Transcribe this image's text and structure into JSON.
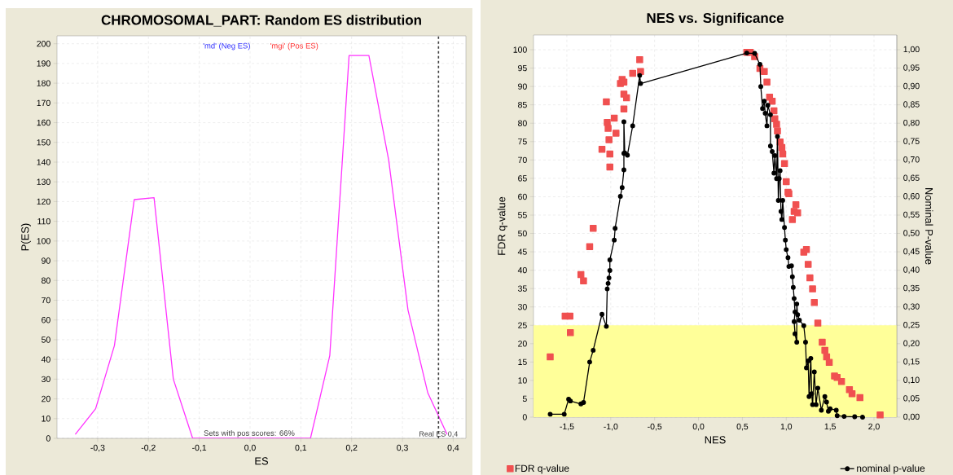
{
  "chart_data": [
    {
      "type": "line",
      "title": "CHROMOSOMAL_PART: Random ES distribution",
      "xlabel": "ES",
      "ylabel": "P(ES)",
      "x": [
        -0.344,
        -0.304,
        -0.267,
        -0.228,
        -0.189,
        -0.151,
        -0.113,
        0.119,
        0.157,
        0.195,
        0.234,
        0.273,
        0.311,
        0.35,
        0.388
      ],
      "series": [
        {
          "color": "#ff33ff",
          "values": [
            2,
            15,
            47,
            121,
            122,
            30,
            0,
            0,
            42,
            194,
            194,
            141,
            65,
            23,
            2
          ]
        }
      ],
      "xlim": [
        -0.38,
        0.425
      ],
      "ylim": [
        0,
        204
      ],
      "xticks": [
        {
          "value": -0.3,
          "label": "-0,3"
        },
        {
          "value": -0.2,
          "label": "-0,2"
        },
        {
          "value": -0.1,
          "label": "-0,1"
        },
        {
          "value": 0,
          "label": "0,0"
        },
        {
          "value": 0.1,
          "label": "0,1"
        },
        {
          "value": 0.2,
          "label": "0,2"
        },
        {
          "value": 0.3,
          "label": "0,3"
        },
        {
          "value": 0.4,
          "label": "0,4"
        }
      ],
      "yticks": [
        0,
        10,
        20,
        30,
        40,
        50,
        60,
        70,
        80,
        90,
        100,
        110,
        120,
        130,
        140,
        150,
        160,
        170,
        180,
        190,
        200
      ],
      "grid": true,
      "ref_lines": [
        {
          "axis": "x",
          "value": 0.371,
          "label": "Real ES 0,4",
          "color": "#404040",
          "line_style": "dashed"
        }
      ],
      "annotations": [
        "'md' (Neg ES)",
        "'mgi' (Pos ES)",
        "Sets with pos scores: 66%"
      ]
    },
    {
      "type": "scatter",
      "title": "NES vs. Significance",
      "xlabel": "NES",
      "ylabel": "FDR q-value",
      "y2label": "Nominal P-value",
      "series": [
        {
          "name": "FDR q-value",
          "type": "scatter",
          "color": "#f05050",
          "marker": "square",
          "x": [
            -1.69,
            -1.52,
            -1.465,
            -1.46,
            -1.34,
            -1.31,
            -1.24,
            -1.2,
            -1.1,
            -1.05,
            -1.04,
            -1.03,
            -1.02,
            -1.01,
            -1.01,
            -0.96,
            -0.94,
            -0.89,
            -0.87,
            -0.85,
            -0.85,
            -0.85,
            -0.82,
            -0.75,
            -0.67,
            -0.66,
            0.55,
            0.59,
            0.64,
            0.7,
            0.75,
            0.78,
            0.81,
            0.84,
            0.86,
            0.87,
            0.89,
            0.9,
            0.93,
            0.95,
            0.96,
            0.98,
            1.0,
            1.02,
            1.03,
            1.07,
            1.09,
            1.11,
            1.13,
            1.2,
            1.23,
            1.25,
            1.27,
            1.3,
            1.32,
            1.36,
            1.41,
            1.44,
            1.46,
            1.49,
            1.55,
            1.58,
            1.63,
            1.72,
            1.75,
            1.84,
            2.07
          ],
          "values": [
            16.4,
            27.5,
            27.5,
            23.0,
            38.8,
            37.1,
            46.4,
            51.4,
            72.9,
            85.8,
            80.2,
            78.6,
            75.5,
            71.6,
            68.1,
            81.4,
            77.3,
            90.8,
            91.9,
            91.2,
            87.9,
            83.9,
            86.9,
            93.6,
            97.3,
            94.1,
            99.3,
            99.3,
            98.1,
            94.9,
            94.1,
            91.2,
            87.1,
            86.0,
            83.4,
            81.2,
            79.7,
            77.9,
            74.9,
            73.4,
            71.6,
            69.0,
            64.1,
            61.2,
            60.8,
            53.8,
            56.0,
            57.8,
            55.6,
            44.9,
            45.6,
            41.6,
            37.9,
            34.9,
            31.2,
            25.6,
            20.4,
            18.2,
            16.4,
            14.9,
            11.2,
            10.8,
            9.7,
            7.5,
            6.4,
            5.3,
            0.6
          ]
        },
        {
          "name": "nominal p-value",
          "type": "line",
          "axis": "y2",
          "color": "#000000",
          "marker": "circle",
          "x": [
            -1.69,
            -1.53,
            -1.48,
            -1.46,
            -1.34,
            -1.31,
            -1.24,
            -1.2,
            -1.1,
            -1.05,
            -1.04,
            -1.03,
            -1.02,
            -1.01,
            -1.01,
            -0.96,
            -0.95,
            -0.89,
            -0.87,
            -0.85,
            -0.85,
            -0.85,
            -0.84,
            -0.81,
            -0.75,
            -0.67,
            -0.66,
            0.55,
            0.64,
            0.7,
            0.71,
            0.73,
            0.75,
            0.76,
            0.78,
            0.79,
            0.82,
            0.82,
            0.84,
            0.86,
            0.87,
            0.89,
            0.9,
            0.91,
            0.92,
            0.93,
            0.94,
            0.95,
            0.96,
            0.98,
            0.99,
            1.0,
            1.02,
            1.03,
            1.06,
            1.07,
            1.08,
            1.09,
            1.1,
            1.09,
            1.1,
            1.12,
            1.12,
            1.13,
            1.15,
            1.2,
            1.22,
            1.23,
            1.25,
            1.26,
            1.28,
            1.29,
            1.3,
            1.32,
            1.34,
            1.36,
            1.4,
            1.44,
            1.46,
            1.48,
            1.5,
            1.57,
            1.58,
            1.66,
            1.78,
            1.87
          ],
          "values": [
            0.008,
            0.008,
            0.049,
            0.044,
            0.036,
            0.04,
            0.15,
            0.182,
            0.28,
            0.247,
            0.349,
            0.364,
            0.379,
            0.399,
            0.428,
            0.482,
            0.514,
            0.601,
            0.625,
            0.673,
            0.718,
            0.804,
            0.719,
            0.713,
            0.793,
            0.93,
            0.908,
            0.991,
            0.99,
            0.96,
            0.9,
            0.84,
            0.86,
            0.827,
            0.793,
            0.849,
            0.823,
            0.738,
            0.723,
            0.664,
            0.712,
            0.649,
            0.764,
            0.59,
            0.649,
            0.671,
            0.56,
            0.538,
            0.59,
            0.516,
            0.482,
            0.456,
            0.434,
            0.41,
            0.412,
            0.382,
            0.353,
            0.323,
            0.286,
            0.26,
            0.227,
            0.204,
            0.308,
            0.279,
            0.264,
            0.249,
            0.204,
            0.134,
            0.153,
            0.056,
            0.16,
            0.064,
            0.034,
            0.123,
            0.034,
            0.079,
            0.019,
            0.056,
            0.041,
            0.016,
            0.023,
            0.019,
            0.004,
            0.002,
            0.001,
            0.0
          ]
        }
      ],
      "xlim": [
        -1.88,
        2.26
      ],
      "ylim": [
        0,
        104
      ],
      "y2lim": [
        0,
        1.04
      ],
      "xticks": [
        {
          "value": -1.5,
          "label": "-1,5"
        },
        {
          "value": -1.0,
          "label": "-1,0"
        },
        {
          "value": -0.5,
          "label": "-0,5"
        },
        {
          "value": 0,
          "label": "0,0"
        },
        {
          "value": 0.5,
          "label": "0,5"
        },
        {
          "value": 1.0,
          "label": "1,0"
        },
        {
          "value": 1.5,
          "label": "1,5"
        },
        {
          "value": 2.0,
          "label": "2,0"
        }
      ],
      "yticks": [
        0,
        5,
        10,
        15,
        20,
        25,
        30,
        35,
        40,
        45,
        50,
        55,
        60,
        65,
        70,
        75,
        80,
        85,
        90,
        95,
        100
      ],
      "y2ticks": [
        {
          "value": 0,
          "label": "0,00"
        },
        {
          "value": 0.05,
          "label": "0,05"
        },
        {
          "value": 0.1,
          "label": "0,10"
        },
        {
          "value": 0.15,
          "label": "0,15"
        },
        {
          "value": 0.2,
          "label": "0,20"
        },
        {
          "value": 0.25,
          "label": "0,25"
        },
        {
          "value": 0.3,
          "label": "0,30"
        },
        {
          "value": 0.35,
          "label": "0,35"
        },
        {
          "value": 0.4,
          "label": "0,40"
        },
        {
          "value": 0.45,
          "label": "0,45"
        },
        {
          "value": 0.5,
          "label": "0,50"
        },
        {
          "value": 0.55,
          "label": "0,55"
        },
        {
          "value": 0.6,
          "label": "0,60"
        },
        {
          "value": 0.65,
          "label": "0,65"
        },
        {
          "value": 0.7,
          "label": "0,70"
        },
        {
          "value": 0.75,
          "label": "0,75"
        },
        {
          "value": 0.8,
          "label": "0,80"
        },
        {
          "value": 0.85,
          "label": "0,85"
        },
        {
          "value": 0.9,
          "label": "0,90"
        },
        {
          "value": 0.95,
          "label": "0,95"
        },
        {
          "value": 1.0,
          "label": "1,00"
        }
      ],
      "bands": [
        {
          "axis": "y",
          "from": 0,
          "to": 25,
          "color": "#ffff99"
        }
      ],
      "grid": true,
      "legend": "bottom"
    }
  ]
}
